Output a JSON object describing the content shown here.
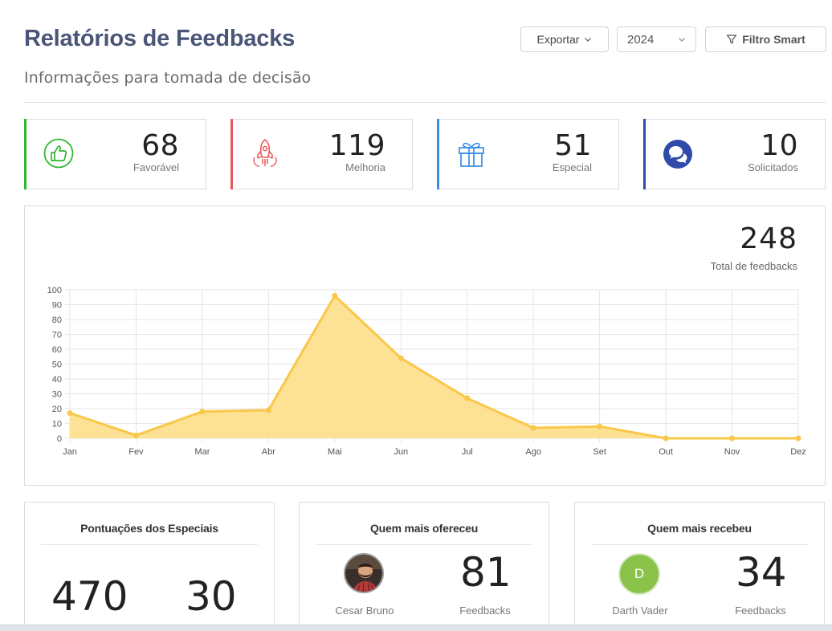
{
  "header": {
    "title": "Relatórios de Feedbacks",
    "subtitle": "Informações para tomada de decisão",
    "export_label": "Exportar",
    "year_value": "2024",
    "filter_label": "Filtro Smart"
  },
  "stats": [
    {
      "value": "68",
      "label": "Favorável",
      "color": "#2eb82e",
      "icon": "thumbs-up-icon"
    },
    {
      "value": "119",
      "label": "Melhoria",
      "color": "#e95a5a",
      "icon": "rocket-icon"
    },
    {
      "value": "51",
      "label": "Especial",
      "color": "#3a8ee6",
      "icon": "gift-icon"
    },
    {
      "value": "10",
      "label": "Solicitados",
      "color": "#2f4aa8",
      "icon": "chat-bubbles-icon"
    }
  ],
  "total": {
    "value": "248",
    "label": "Total de feedbacks"
  },
  "chart_data": {
    "type": "area",
    "categories": [
      "Jan",
      "Fev",
      "Mar",
      "Abr",
      "Mai",
      "Jun",
      "Jul",
      "Ago",
      "Set",
      "Out",
      "Nov",
      "Dez"
    ],
    "values": [
      17,
      2,
      18,
      19,
      96,
      54,
      27,
      7,
      8,
      0,
      0,
      0
    ],
    "ylim": [
      0,
      100
    ],
    "yticks": [
      0,
      10,
      20,
      30,
      40,
      50,
      60,
      70,
      80,
      90,
      100
    ],
    "grid": true,
    "line_color": "#f9c84a",
    "fill_color": "#fddf8f"
  },
  "especiais": {
    "title": "Pontuações dos Especiais",
    "value_a": "470",
    "value_b": "30"
  },
  "ofereceu": {
    "title": "Quem mais ofereceu",
    "name": "Cesar Bruno",
    "count": "81",
    "count_label": "Feedbacks"
  },
  "recebeu": {
    "title": "Quem mais recebeu",
    "name": "Darth Vader",
    "initial": "D",
    "count": "34",
    "count_label": "Feedbacks"
  }
}
